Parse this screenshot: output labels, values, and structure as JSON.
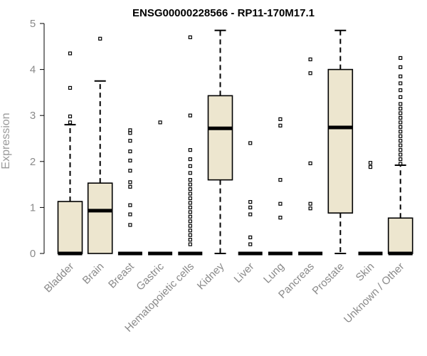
{
  "chart_data": {
    "type": "box",
    "title": "ENSG00000228566 - RP11-170M17.1",
    "ylabel": "Expression",
    "xlabel": "",
    "ylim": [
      0,
      5
    ],
    "yticks": [
      0,
      1,
      2,
      3,
      4,
      5
    ],
    "grid": false,
    "box_fill": "#ede6cf",
    "line_color": "#000000",
    "categories": [
      "Bladder",
      "Brain",
      "Breast",
      "Gastric",
      "Hematopoietic cells",
      "Kidney",
      "Liver",
      "Lung",
      "Pancreas",
      "Prostate",
      "Skin",
      "Unknown / Other"
    ],
    "boxes": [
      {
        "q1": 0,
        "median": 0,
        "q3": 1.13,
        "whisker_low": 0,
        "whisker_high": 2.8,
        "outliers": [
          2.85,
          2.98,
          3.6,
          4.35
        ]
      },
      {
        "q1": 0,
        "median": 0.93,
        "q3": 1.53,
        "whisker_low": 0,
        "whisker_high": 3.75,
        "outliers": [
          4.67
        ]
      },
      {
        "q1": 0,
        "median": 0,
        "q3": 0,
        "whisker_low": 0,
        "whisker_high": 0,
        "outliers": [
          0.62,
          0.85,
          1.05,
          1.45,
          1.55,
          1.8,
          2.02,
          2.22,
          2.45,
          2.62,
          2.68
        ]
      },
      {
        "q1": 0,
        "median": 0,
        "q3": 0,
        "whisker_low": 0,
        "whisker_high": 0,
        "outliers": [
          2.85
        ]
      },
      {
        "q1": 0,
        "median": 0,
        "q3": 0,
        "whisker_low": 0,
        "whisker_high": 0,
        "outliers": [
          0.2,
          0.3,
          0.4,
          0.5,
          0.6,
          0.7,
          0.8,
          0.9,
          1.0,
          1.1,
          1.2,
          1.3,
          1.4,
          1.5,
          1.6,
          1.75,
          1.9,
          2.05,
          2.25,
          3.0,
          4.7
        ]
      },
      {
        "q1": 1.6,
        "median": 2.72,
        "q3": 3.43,
        "whisker_low": 0,
        "whisker_high": 4.85,
        "outliers": []
      },
      {
        "q1": 0,
        "median": 0,
        "q3": 0,
        "whisker_low": 0,
        "whisker_high": 0,
        "outliers": [
          0.2,
          0.35,
          0.85,
          1.0,
          1.12,
          2.4
        ]
      },
      {
        "q1": 0,
        "median": 0,
        "q3": 0,
        "whisker_low": 0,
        "whisker_high": 0,
        "outliers": [
          0.78,
          1.08,
          1.6,
          2.78,
          2.92
        ]
      },
      {
        "q1": 0,
        "median": 0,
        "q3": 0,
        "whisker_low": 0,
        "whisker_high": 0,
        "outliers": [
          0.98,
          1.08,
          1.96,
          3.92,
          4.22
        ]
      },
      {
        "q1": 0.88,
        "median": 2.74,
        "q3": 4.0,
        "whisker_low": 0,
        "whisker_high": 4.85,
        "outliers": []
      },
      {
        "q1": 0,
        "median": 0,
        "q3": 0,
        "whisker_low": 0,
        "whisker_high": 0,
        "outliers": [
          1.88,
          1.97
        ]
      },
      {
        "q1": 0,
        "median": 0,
        "q3": 0.77,
        "whisker_low": 0,
        "whisker_high": 1.92,
        "outliers": [
          1.95,
          2.05,
          2.15,
          2.25,
          2.35,
          2.45,
          2.55,
          2.65,
          2.75,
          2.85,
          2.95,
          3.05,
          3.15,
          3.25,
          3.4,
          3.55,
          3.7,
          3.85,
          4.05,
          4.25
        ]
      }
    ]
  }
}
